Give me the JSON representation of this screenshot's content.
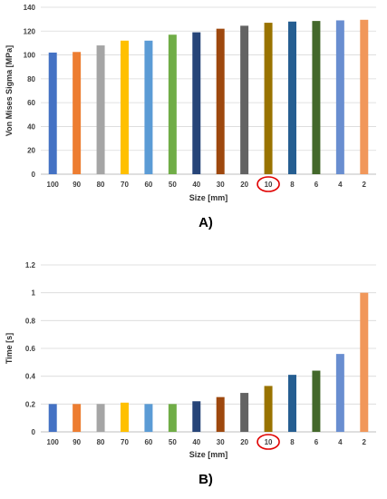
{
  "chart_data": [
    {
      "type": "bar",
      "panel_label": "A)",
      "categories": [
        "100",
        "90",
        "80",
        "70",
        "60",
        "50",
        "40",
        "30",
        "20",
        "10",
        "8",
        "6",
        "4",
        "2"
      ],
      "values": [
        102,
        102.5,
        108,
        112,
        112,
        117,
        119,
        122,
        124.5,
        127,
        128,
        128.5,
        129,
        129.5
      ],
      "colors": [
        "#4472c4",
        "#ed7d31",
        "#a5a5a5",
        "#ffc000",
        "#5b9bd5",
        "#70ad47",
        "#264478",
        "#9e480e",
        "#636363",
        "#997300",
        "#255e91",
        "#43682b",
        "#698ed0",
        "#f1975a"
      ],
      "xlabel": "Size  [mm]",
      "ylabel": "Von Mises Sigma [MPa]",
      "ylim": [
        0,
        140
      ],
      "yticks": [
        0,
        20,
        40,
        60,
        80,
        100,
        120,
        140
      ],
      "ytick_labels": [
        "0",
        "20",
        "40",
        "60",
        "80",
        "100",
        "120",
        "140"
      ],
      "highlighted_category": "10",
      "grid": true
    },
    {
      "type": "bar",
      "panel_label": "B)",
      "categories": [
        "100",
        "90",
        "80",
        "70",
        "60",
        "50",
        "40",
        "30",
        "20",
        "10",
        "8",
        "6",
        "4",
        "2"
      ],
      "values": [
        0.2,
        0.2,
        0.2,
        0.21,
        0.2,
        0.2,
        0.22,
        0.25,
        0.28,
        0.33,
        0.41,
        0.44,
        0.56,
        1.0
      ],
      "colors": [
        "#4472c4",
        "#ed7d31",
        "#a5a5a5",
        "#ffc000",
        "#5b9bd5",
        "#70ad47",
        "#264478",
        "#9e480e",
        "#636363",
        "#997300",
        "#255e91",
        "#43682b",
        "#698ed0",
        "#f1975a"
      ],
      "xlabel": "Size  [mm]",
      "ylabel": "Time [s]",
      "ylim": [
        0,
        1.2
      ],
      "yticks": [
        0,
        0.2,
        0.4,
        0.6,
        0.8,
        1,
        1.2
      ],
      "ytick_labels": [
        "0",
        "0.2",
        "0.4",
        "0.6",
        "0.8",
        "1",
        "1.2"
      ],
      "highlighted_category": "10",
      "grid": true
    }
  ]
}
